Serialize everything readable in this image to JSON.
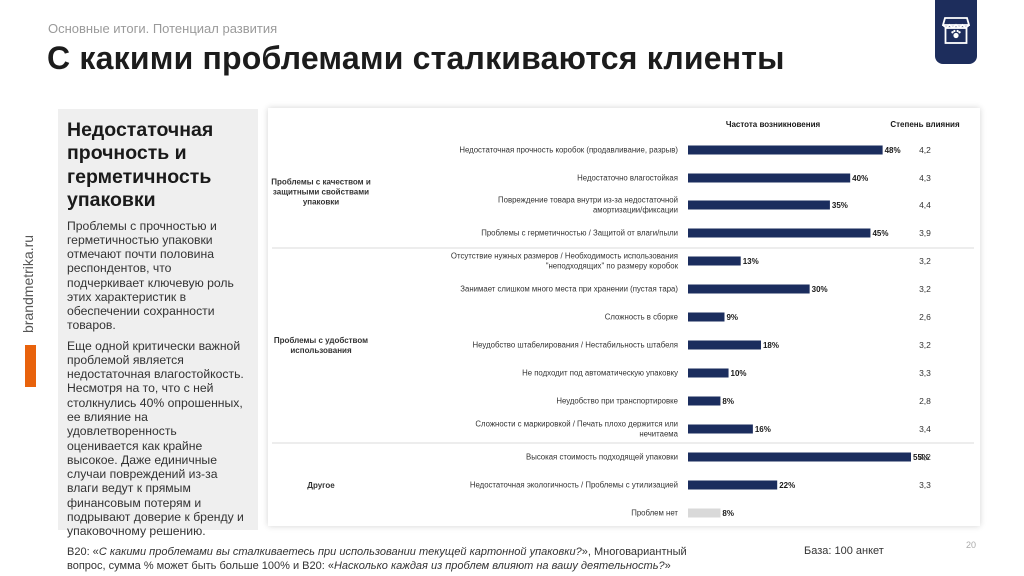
{
  "header": {
    "breadcrumb": "Основные итоги. Потенциал развития",
    "title": "С какими проблемами сталкиваются клиенты"
  },
  "side": {
    "url": "brandmetrika.ru"
  },
  "panel": {
    "title": "Недостаточная прочность и герметичность упаковки",
    "paragraph1": "Проблемы с прочностью и герметичностью упаковки отмечают почти половина респондентов, что подчеркивает ключевую роль этих характеристик в обеспечении сохранности товаров.",
    "paragraph2": "Еще одной критически важной проблемой является недостаточная влагостойкость. Несмотря на то, что с ней столкнулись 40% опрошенных, ее влияние на удовлетворенность оценивается как крайне высокое. Даже единичные случаи повреждений из-за влаги ведут к прямым финансовым потерям и подрывают доверие к бренду и упаковочному решению."
  },
  "footer": {
    "q1_prefix": "B20: «",
    "q1_italic": "С какими проблемами вы сталкиваетесь при использовании текущей картонной упаковки?",
    "q1_suffix": "», Многовариантный вопрос, сумма % может быть больше 100% и B20: «",
    "q2_italic": "Насколько каждая из проблем влияют на вашу деятельность?",
    "q2_suffix": "»",
    "base": "База: 100 анкет",
    "page_number": "20"
  },
  "colors": {
    "bar": "#1b2d5e",
    "bar_other": "#d9d9d9",
    "accent": "#e8620c",
    "logo_bg": "#1d2d5c"
  },
  "chart_data": {
    "type": "bar",
    "orientation": "horizontal",
    "header_frequency": "Частота возникновения",
    "header_impact": "Степень влияния",
    "xlim": [
      0,
      55
    ],
    "groups": [
      {
        "name": "Проблемы с качеством и защитными свойствами упаковки",
        "start": 0,
        "end": 3
      },
      {
        "name": "Проблемы с удобством использования",
        "start": 4,
        "end": 10
      },
      {
        "name": "Другое",
        "start": 11,
        "end": 13
      }
    ],
    "categories": [
      "Недостаточная прочность коробок (продавливание, разрыв)",
      "Недостаточно влагостойкая",
      "Повреждение товара внутри из-за недостаточной амортизации/фиксации",
      "Проблемы с герметичностью / Защитой от влаги/пыли",
      "Отсутствие нужных размеров / Необходимость использования \"неподходящих\" по размеру коробок",
      "Занимает слишком много места при хранении (пустая тара)",
      "Сложность в сборке",
      "Неудобство штабелирования / Нестабильность штабеля",
      "Не подходит под автоматическую упаковку",
      "Неудобство при транспортировке",
      "Сложности с маркировкой / Печать плохо держится или нечитаема",
      "Высокая стоимость подходящей упаковки",
      "Недостаточная экологичность / Проблемы с утилизацией",
      "Проблем нет"
    ],
    "values": [
      48,
      40,
      35,
      45,
      13,
      30,
      9,
      18,
      10,
      8,
      16,
      55,
      22,
      8
    ],
    "value_labels": [
      "48%",
      "40%",
      "35%",
      "45%",
      "13%",
      "30%",
      "9%",
      "18%",
      "10%",
      "8%",
      "16%",
      "55%",
      "22%",
      "8%"
    ],
    "impact": [
      "4,2",
      "4,3",
      "4,4",
      "3,9",
      "3,2",
      "3,2",
      "2,6",
      "3,2",
      "3,3",
      "2,8",
      "3,4",
      "4,2",
      "3,3",
      ""
    ],
    "highlight_gray": [
      13
    ]
  }
}
